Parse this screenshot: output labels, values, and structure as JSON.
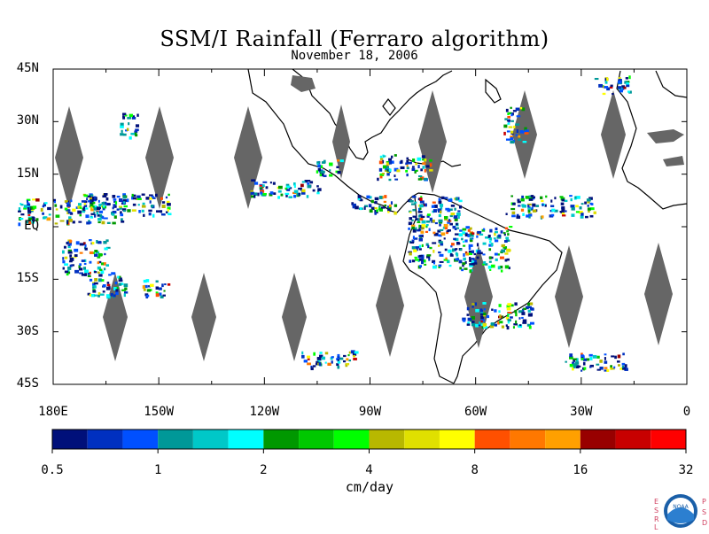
{
  "title": "SSM/I Rainfall (Ferraro algorithm)",
  "subtitle": "November 18, 2006",
  "lat_labels": [
    "45N",
    "30N",
    "15N",
    "EQ",
    "15S",
    "30S",
    "45S"
  ],
  "lon_labels": [
    "180E",
    "150W",
    "120W",
    "90W",
    "60W",
    "30W",
    "0"
  ],
  "colorbar": {
    "labels": [
      "0.5",
      "1",
      "2",
      "4",
      "8",
      "16",
      "32"
    ],
    "unit": "cm/day",
    "colors": [
      "#00107a",
      "#0030c0",
      "#0050ff",
      "#009898",
      "#00c8c8",
      "#00ffff",
      "#009800",
      "#00c800",
      "#00ff00",
      "#b8b800",
      "#e0e000",
      "#ffff00",
      "#ff5000",
      "#ff7800",
      "#ffa000",
      "#980000",
      "#c80000",
      "#ff0000"
    ]
  },
  "map_colors": {
    "land_outline": "#000000",
    "data_gap": "#666666",
    "frame": "#000000"
  },
  "logo": {
    "name": "noaa-logo",
    "side_left": "ESRL",
    "side_right": "PSD"
  }
}
